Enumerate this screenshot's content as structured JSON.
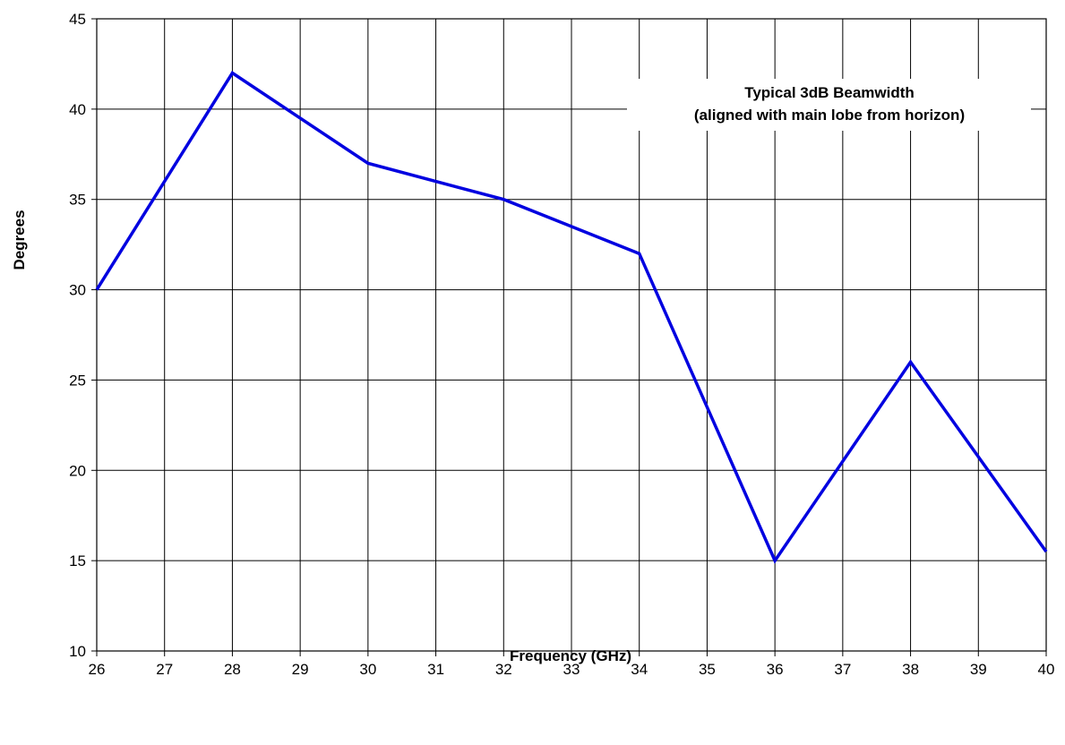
{
  "chart_data": {
    "type": "line",
    "title": "",
    "xlabel": "Frequency (GHz)",
    "ylabel": "Degrees",
    "xlim": [
      26,
      40
    ],
    "ylim": [
      10,
      45
    ],
    "x_ticks": [
      26,
      27,
      28,
      29,
      30,
      31,
      32,
      33,
      34,
      35,
      36,
      37,
      38,
      39,
      40
    ],
    "y_ticks": [
      10,
      15,
      20,
      25,
      30,
      35,
      40,
      45
    ],
    "grid": true,
    "legend": "none",
    "annotation": {
      "lines": [
        "Typical 3dB Beamwidth",
        "(aligned with main lobe from horizon)"
      ]
    },
    "series": [
      {
        "color": "#0000e0",
        "x": [
          26,
          28,
          30,
          32,
          34,
          36,
          38,
          40
        ],
        "y": [
          30,
          42,
          37,
          35,
          32,
          15,
          26,
          15.5
        ]
      }
    ]
  }
}
